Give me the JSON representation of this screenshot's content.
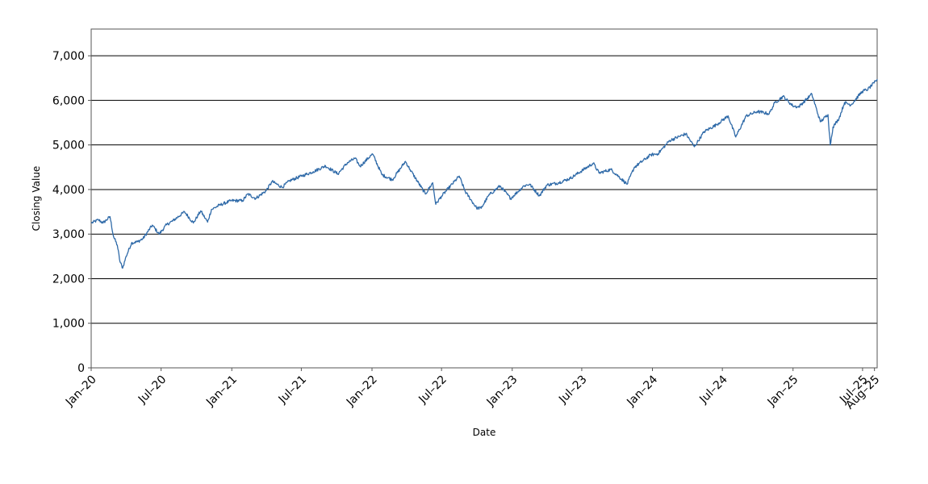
{
  "chart_data": {
    "type": "line",
    "title": "",
    "xlabel": "Date",
    "ylabel": "Closing Value",
    "ylim": [
      0,
      7600
    ],
    "xlim": [
      "2020-01-01",
      "2025-08-08"
    ],
    "grid": "horizontal",
    "legend": "none",
    "line_color": "#2f6aa8",
    "y_ticks": [
      {
        "value": 0,
        "label": "0"
      },
      {
        "value": 1000,
        "label": "1,000"
      },
      {
        "value": 2000,
        "label": "2,000"
      },
      {
        "value": 3000,
        "label": "3,000"
      },
      {
        "value": 4000,
        "label": "4,000"
      },
      {
        "value": 5000,
        "label": "5,000"
      },
      {
        "value": 6000,
        "label": "6,000"
      },
      {
        "value": 7000,
        "label": "7,000"
      }
    ],
    "x_ticks": [
      {
        "date": "2020-01-01",
        "label": "Jan–20"
      },
      {
        "date": "2020-07-01",
        "label": "Jul–20"
      },
      {
        "date": "2021-01-01",
        "label": "Jan–21"
      },
      {
        "date": "2021-07-01",
        "label": "Jul–21"
      },
      {
        "date": "2022-01-01",
        "label": "Jan–22"
      },
      {
        "date": "2022-07-01",
        "label": "Jul–22"
      },
      {
        "date": "2023-01-01",
        "label": "Jan–23"
      },
      {
        "date": "2023-07-01",
        "label": "Jul–23"
      },
      {
        "date": "2024-01-01",
        "label": "Jan–24"
      },
      {
        "date": "2024-07-01",
        "label": "Jul–24"
      },
      {
        "date": "2025-01-01",
        "label": "Jan–25"
      },
      {
        "date": "2025-07-01",
        "label": "Jul–25"
      },
      {
        "date": "2025-08-01",
        "label": "Aug–25"
      }
    ],
    "series": [
      {
        "x": [
          "2020-01-02",
          "2020-01-20",
          "2020-02-01",
          "2020-02-19",
          "2020-02-28",
          "2020-03-09",
          "2020-03-16",
          "2020-03-23",
          "2020-04-01",
          "2020-04-15",
          "2020-05-01",
          "2020-05-15",
          "2020-06-08",
          "2020-06-26",
          "2020-07-15",
          "2020-08-01",
          "2020-08-31",
          "2020-09-23",
          "2020-10-12",
          "2020-10-30",
          "2020-11-09",
          "2020-11-30",
          "2020-12-31",
          "2021-01-29",
          "2021-02-12",
          "2021-03-04",
          "2021-03-31",
          "2021-04-16",
          "2021-05-12",
          "2021-06-01",
          "2021-07-01",
          "2021-08-01",
          "2021-09-02",
          "2021-10-04",
          "2021-10-29",
          "2021-11-18",
          "2021-12-01",
          "2021-12-31",
          "2022-01-03",
          "2022-01-27",
          "2022-02-23",
          "2022-03-29",
          "2022-04-10",
          "2022-05-20",
          "2022-06-08",
          "2022-06-16",
          "2022-07-01",
          "2022-08-16",
          "2022-09-01",
          "2022-09-30",
          "2022-10-12",
          "2022-11-01",
          "2022-11-30",
          "2022-12-28",
          "2023-01-31",
          "2023-02-15",
          "2023-03-13",
          "2023-04-01",
          "2023-05-01",
          "2023-06-01",
          "2023-07-31",
          "2023-08-15",
          "2023-09-15",
          "2023-10-27",
          "2023-11-15",
          "2023-12-28",
          "2024-01-15",
          "2024-02-15",
          "2024-03-28",
          "2024-04-19",
          "2024-05-15",
          "2024-06-15",
          "2024-07-16",
          "2024-08-05",
          "2024-09-01",
          "2024-09-30",
          "2024-10-31",
          "2024-11-15",
          "2024-12-06",
          "2024-12-31",
          "2025-01-15",
          "2025-02-19",
          "2025-03-13",
          "2025-04-02",
          "2025-04-08",
          "2025-04-15",
          "2025-05-01",
          "2025-05-15",
          "2025-06-01",
          "2025-06-30",
          "2025-07-15",
          "2025-07-31",
          "2025-08-08"
        ],
        "y": [
          3250,
          3320,
          3250,
          3390,
          2950,
          2750,
          2380,
          2240,
          2500,
          2800,
          2830,
          2900,
          3200,
          3000,
          3210,
          3300,
          3500,
          3250,
          3520,
          3270,
          3550,
          3650,
          3750,
          3750,
          3900,
          3800,
          3970,
          4180,
          4050,
          4200,
          4300,
          4400,
          4530,
          4350,
          4600,
          4700,
          4520,
          4780,
          4790,
          4330,
          4220,
          4630,
          4450,
          3900,
          4150,
          3670,
          3850,
          4300,
          3950,
          3590,
          3580,
          3870,
          4080,
          3800,
          4080,
          4120,
          3860,
          4100,
          4150,
          4250,
          4590,
          4370,
          4450,
          4120,
          4500,
          4780,
          4800,
          5100,
          5250,
          4960,
          5300,
          5450,
          5650,
          5180,
          5650,
          5750,
          5700,
          5950,
          6090,
          5880,
          5850,
          6140,
          5520,
          5680,
          5000,
          5400,
          5600,
          5950,
          5900,
          6200,
          6250,
          6390,
          6470
        ]
      }
    ]
  }
}
